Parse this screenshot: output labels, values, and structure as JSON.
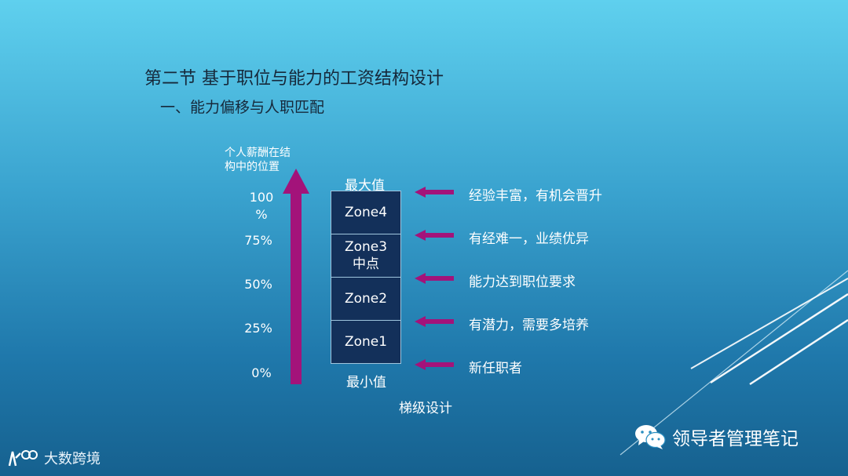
{
  "slide": {
    "title": "第二节 基于职位与能力的工资结构设计",
    "subtitle": "一、能力偏移与人职匹配",
    "axis_label": "个人薪酬在结构中的位置",
    "percent_labels": [
      "100 %",
      "75%",
      "50%",
      "25%",
      "0%"
    ],
    "zones": [
      "Zone4",
      "Zone3 中点",
      "Zone2",
      "Zone1"
    ],
    "max_label": "最大值",
    "min_label": "最小值",
    "ladder_label": "梯级设计",
    "descriptions": [
      "经验丰富，有机会晋升",
      "有经难一，业绩优异",
      "能力达到职位要求",
      "有潜力，需要多培养",
      "新任职者"
    ]
  },
  "footer": {
    "wechat_text": "领导者管理笔记",
    "logo_text": "大数跨境"
  },
  "colors": {
    "arrow": "#a3137a",
    "zone_fill": "#13305a",
    "text_dark": "#16283a"
  },
  "icons": [
    "vertical-arrow-icon",
    "left-arrow-icon",
    "wechat-icon",
    "logo-icon"
  ]
}
